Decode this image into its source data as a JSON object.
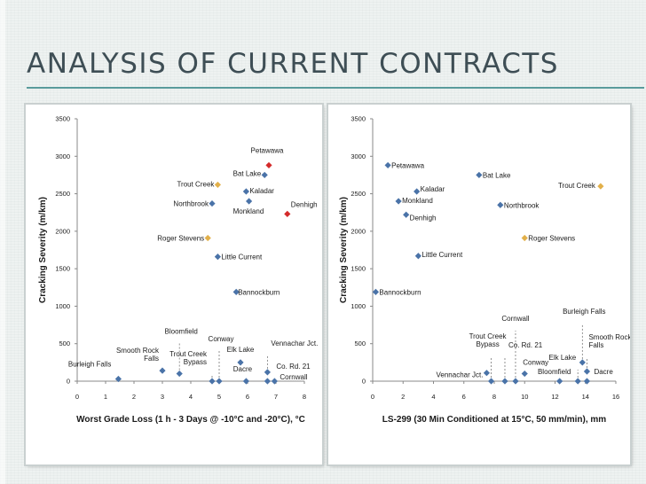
{
  "slide": {
    "title": "ANALYSIS OF CURRENT CONTRACTS"
  },
  "colors": {
    "default": "#4a73a8",
    "red": "#d42a2a",
    "gold": "#e2b04a",
    "dashed": "#777777"
  },
  "chart_data": [
    {
      "type": "scatter",
      "title": "",
      "xlabel": "Worst Grade Loss (1 h - 3 Days @ -10°C and -20°C), °C",
      "ylabel": "Cracking Severity (m/km)",
      "xlim": [
        0,
        8
      ],
      "ylim": [
        0,
        3500
      ],
      "xticks": [
        "0",
        "1",
        "2",
        "3",
        "4",
        "5",
        "6",
        "7",
        "8"
      ],
      "yticks": [
        "0",
        "500",
        "1000",
        "1500",
        "2000",
        "2500",
        "3000",
        "3500"
      ],
      "points": [
        {
          "name": "Petawawa",
          "x": 6.75,
          "y": 2880,
          "color": "red"
        },
        {
          "name": "Bat Lake",
          "x": 6.6,
          "y": 2750,
          "color": "default"
        },
        {
          "name": "Trout Creek",
          "x": 4.95,
          "y": 2620,
          "color": "gold"
        },
        {
          "name": "Kaladar",
          "x": 5.95,
          "y": 2530,
          "color": "default"
        },
        {
          "name": "Northbrook",
          "x": 4.75,
          "y": 2370,
          "color": "default"
        },
        {
          "name": "Monkland",
          "x": 6.05,
          "y": 2400,
          "color": "default"
        },
        {
          "name": "Denhigh",
          "x": 7.4,
          "y": 2230,
          "color": "red"
        },
        {
          "name": "Roger Stevens",
          "x": 4.6,
          "y": 1910,
          "color": "gold"
        },
        {
          "name": "Little Current",
          "x": 4.95,
          "y": 1660,
          "color": "default"
        },
        {
          "name": "Bannockburn",
          "x": 5.6,
          "y": 1190,
          "color": "default"
        },
        {
          "name": "Burleigh Falls",
          "x": 1.45,
          "y": 30,
          "color": "default"
        },
        {
          "name": "Smooth Rock Falls",
          "x": 3.0,
          "y": 140,
          "color": "default"
        },
        {
          "name": "Bloomfield",
          "x": 3.6,
          "y": 100,
          "color": "default"
        },
        {
          "name": "Trout Creek Bypass",
          "x": 4.75,
          "y": 0,
          "color": "default"
        },
        {
          "name": "Conway",
          "x": 5.0,
          "y": 0,
          "color": "default"
        },
        {
          "name": "Elk Lake",
          "x": 5.75,
          "y": 250,
          "color": "default"
        },
        {
          "name": "Dacre",
          "x": 5.95,
          "y": 0,
          "color": "default"
        },
        {
          "name": "Vennachar Jct.",
          "x": 6.7,
          "y": 120,
          "color": "default"
        },
        {
          "name": "Co. Rd. 21",
          "x": 6.7,
          "y": 0,
          "color": "default"
        },
        {
          "name": "Cornwall",
          "x": 6.95,
          "y": 0,
          "color": "default"
        }
      ]
    },
    {
      "type": "scatter",
      "title": "",
      "xlabel": "LS-299 (30 Min Conditioned at 15°C, 50 mm/min), mm",
      "ylabel": "Cracking Severity (m/km)",
      "xlim": [
        0,
        16
      ],
      "ylim": [
        0,
        3500
      ],
      "xticks": [
        "0",
        "2",
        "4",
        "6",
        "8",
        "10",
        "12",
        "14",
        "16"
      ],
      "yticks": [
        "0",
        "500",
        "1000",
        "1500",
        "2000",
        "2500",
        "3000",
        "3500"
      ],
      "points": [
        {
          "name": "Petawawa",
          "x": 1.0,
          "y": 2880,
          "color": "default"
        },
        {
          "name": "Bat Lake",
          "x": 7.0,
          "y": 2750,
          "color": "default"
        },
        {
          "name": "Trout Creek",
          "x": 15.0,
          "y": 2600,
          "color": "gold"
        },
        {
          "name": "Kaladar",
          "x": 2.9,
          "y": 2530,
          "color": "default"
        },
        {
          "name": "Monkland",
          "x": 1.7,
          "y": 2400,
          "color": "default"
        },
        {
          "name": "Northbrook",
          "x": 8.4,
          "y": 2350,
          "color": "default"
        },
        {
          "name": "Denhigh",
          "x": 2.2,
          "y": 2220,
          "color": "default"
        },
        {
          "name": "Roger Stevens",
          "x": 10.0,
          "y": 1910,
          "color": "gold"
        },
        {
          "name": "Little Current",
          "x": 3.0,
          "y": 1670,
          "color": "default"
        },
        {
          "name": "Bannockburn",
          "x": 0.2,
          "y": 1190,
          "color": "default"
        },
        {
          "name": "Cornwall",
          "x": 9.4,
          "y": 0,
          "color": "default"
        },
        {
          "name": "Trout Creek Bypass",
          "x": 7.8,
          "y": 0,
          "color": "default"
        },
        {
          "name": "Co. Rd. 21",
          "x": 8.7,
          "y": 0,
          "color": "default"
        },
        {
          "name": "Vennachar Jct.",
          "x": 7.5,
          "y": 110,
          "color": "default"
        },
        {
          "name": "Conway",
          "x": 10.0,
          "y": 100,
          "color": "default"
        },
        {
          "name": "Bloomfield",
          "x": 12.3,
          "y": 0,
          "color": "default"
        },
        {
          "name": "Burleigh Falls",
          "x": 13.8,
          "y": 250,
          "color": "default"
        },
        {
          "name": "Elk Lake",
          "x": 13.5,
          "y": 0,
          "color": "default"
        },
        {
          "name": "Smooth Rock Falls",
          "x": 14.1,
          "y": 130,
          "color": "default"
        },
        {
          "name": "Dacre",
          "x": 14.1,
          "y": 0,
          "color": "default"
        }
      ]
    }
  ],
  "charts_text": [
    {
      "labels": [
        "Petawawa",
        "Bat Lake",
        "Trout Creek",
        "Kaladar",
        "Northbrook",
        "Monkland",
        "Denhigh",
        "Roger Stevens",
        "Little Current",
        "Bannockburn",
        "Burleigh Falls",
        "Smooth Rock",
        "Falls",
        "Bloomfield",
        "Trout Creek",
        "Bypass",
        "Conway",
        "Elk Lake",
        "Dacre",
        "Vennachar Jct.",
        "Co. Rd. 21",
        "Cornwall"
      ]
    },
    {
      "labels": [
        "Petawawa",
        "Bat Lake",
        "Trout Creek",
        "Kaladar",
        "Monkland",
        "Northbrook",
        "Denhigh",
        "Roger Stevens",
        "Little Current",
        "Bannockburn",
        "Cornwall",
        "Trout Creek",
        "Bypass",
        "Co. Rd. 21",
        "Vennachar Jct.",
        "Conway",
        "Bloomfield",
        "Burleigh Falls",
        "Elk Lake",
        "Smooth Rock",
        "Falls",
        "Dacre"
      ]
    }
  ]
}
